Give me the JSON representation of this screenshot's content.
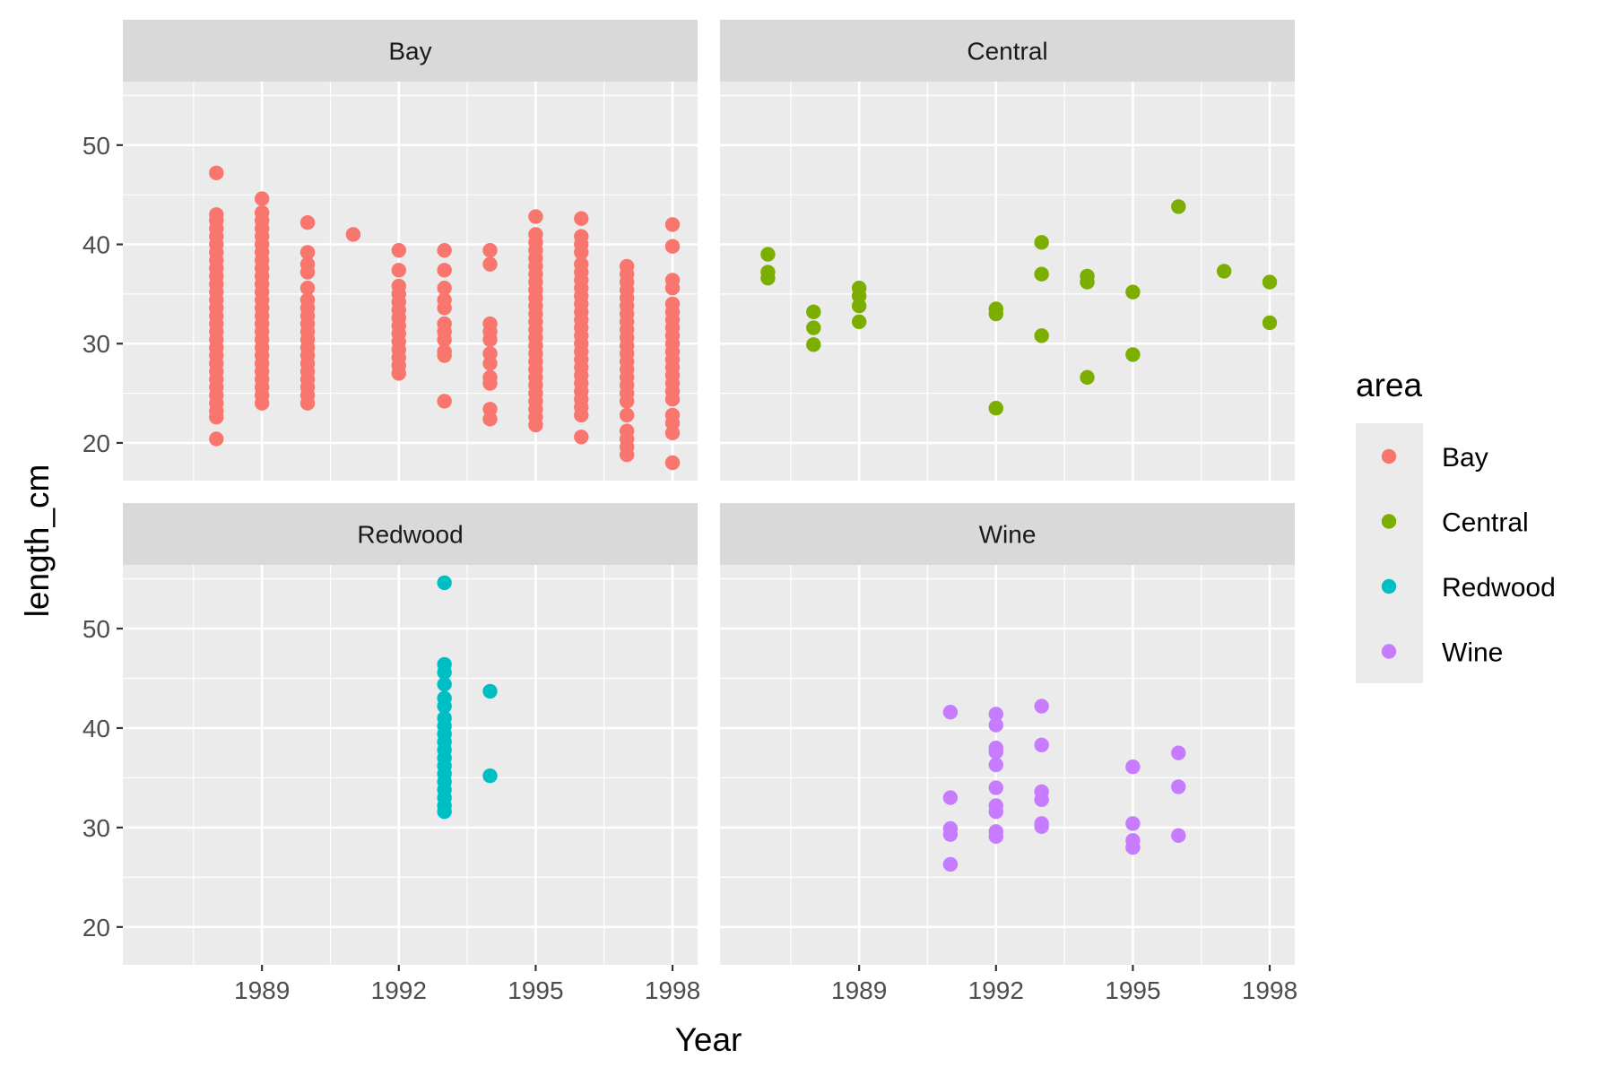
{
  "chart_data": {
    "type": "scatter",
    "xlabel": "Year",
    "ylabel": "length_cm",
    "x_ticks": [
      1989,
      1992,
      1995,
      1998
    ],
    "x_tick_labels": [
      "1989",
      "1992",
      "1995",
      "1998"
    ],
    "xlim": [
      1985.95,
      1998.55
    ],
    "y_ticks": [
      20,
      30,
      40,
      50
    ],
    "y_tick_labels": [
      "20",
      "30",
      "40",
      "50"
    ],
    "ylim": [
      16.2,
      56.4
    ],
    "grid": true,
    "legend": {
      "title": "area",
      "position": "right",
      "entries": [
        "Bay",
        "Central",
        "Redwood",
        "Wine"
      ]
    },
    "series": [
      {
        "name": "Bay",
        "panel": "Bay",
        "color": "#F8766D",
        "points": [
          [
            1988,
            47.2
          ],
          [
            1988,
            43.0
          ],
          [
            1988,
            42.4
          ],
          [
            1988,
            41.6
          ],
          [
            1988,
            40.8
          ],
          [
            1988,
            40.0
          ],
          [
            1988,
            39.2
          ],
          [
            1988,
            38.4
          ],
          [
            1988,
            37.6
          ],
          [
            1988,
            36.8
          ],
          [
            1988,
            36.0
          ],
          [
            1988,
            35.2
          ],
          [
            1988,
            34.4
          ],
          [
            1988,
            33.6
          ],
          [
            1988,
            32.8
          ],
          [
            1988,
            32.0
          ],
          [
            1988,
            31.2
          ],
          [
            1988,
            30.4
          ],
          [
            1988,
            29.6
          ],
          [
            1988,
            28.8
          ],
          [
            1988,
            28.0
          ],
          [
            1988,
            27.2
          ],
          [
            1988,
            26.4
          ],
          [
            1988,
            25.6
          ],
          [
            1988,
            24.8
          ],
          [
            1988,
            24.0
          ],
          [
            1988,
            23.2
          ],
          [
            1988,
            22.6
          ],
          [
            1988,
            20.4
          ],
          [
            1989,
            44.6
          ],
          [
            1989,
            43.2
          ],
          [
            1989,
            42.4
          ],
          [
            1989,
            41.6
          ],
          [
            1989,
            40.8
          ],
          [
            1989,
            40.0
          ],
          [
            1989,
            39.2
          ],
          [
            1989,
            38.4
          ],
          [
            1989,
            37.6
          ],
          [
            1989,
            36.8
          ],
          [
            1989,
            36.0
          ],
          [
            1989,
            35.2
          ],
          [
            1989,
            34.4
          ],
          [
            1989,
            33.6
          ],
          [
            1989,
            32.8
          ],
          [
            1989,
            32.0
          ],
          [
            1989,
            31.2
          ],
          [
            1989,
            30.4
          ],
          [
            1989,
            29.6
          ],
          [
            1989,
            28.8
          ],
          [
            1989,
            28.0
          ],
          [
            1989,
            27.2
          ],
          [
            1989,
            26.4
          ],
          [
            1989,
            25.6
          ],
          [
            1989,
            24.8
          ],
          [
            1989,
            24.0
          ],
          [
            1990,
            42.2
          ],
          [
            1990,
            39.2
          ],
          [
            1990,
            38.0
          ],
          [
            1990,
            37.2
          ],
          [
            1990,
            35.6
          ],
          [
            1990,
            34.4
          ],
          [
            1990,
            33.6
          ],
          [
            1990,
            32.8
          ],
          [
            1990,
            32.0
          ],
          [
            1990,
            31.2
          ],
          [
            1990,
            30.4
          ],
          [
            1990,
            29.6
          ],
          [
            1990,
            28.8
          ],
          [
            1990,
            28.0
          ],
          [
            1990,
            27.2
          ],
          [
            1990,
            26.4
          ],
          [
            1990,
            25.6
          ],
          [
            1990,
            24.8
          ],
          [
            1990,
            24.0
          ],
          [
            1991,
            41.0
          ],
          [
            1992,
            39.4
          ],
          [
            1992,
            37.4
          ],
          [
            1992,
            35.8
          ],
          [
            1992,
            35.0
          ],
          [
            1992,
            34.2
          ],
          [
            1992,
            33.4
          ],
          [
            1992,
            32.6
          ],
          [
            1992,
            31.8
          ],
          [
            1992,
            31.0
          ],
          [
            1992,
            30.2
          ],
          [
            1992,
            29.4
          ],
          [
            1992,
            28.6
          ],
          [
            1992,
            27.8
          ],
          [
            1992,
            27.0
          ],
          [
            1993,
            39.4
          ],
          [
            1993,
            37.4
          ],
          [
            1993,
            35.6
          ],
          [
            1993,
            34.4
          ],
          [
            1993,
            33.6
          ],
          [
            1993,
            32.0
          ],
          [
            1993,
            31.2
          ],
          [
            1993,
            30.4
          ],
          [
            1993,
            29.2
          ],
          [
            1993,
            28.8
          ],
          [
            1993,
            24.2
          ],
          [
            1994,
            39.4
          ],
          [
            1994,
            38.0
          ],
          [
            1994,
            32.0
          ],
          [
            1994,
            31.2
          ],
          [
            1994,
            30.4
          ],
          [
            1994,
            29.0
          ],
          [
            1994,
            28.0
          ],
          [
            1994,
            26.6
          ],
          [
            1994,
            26.0
          ],
          [
            1994,
            23.4
          ],
          [
            1994,
            22.4
          ],
          [
            1995,
            42.8
          ],
          [
            1995,
            41.0
          ],
          [
            1995,
            40.2
          ],
          [
            1995,
            39.4
          ],
          [
            1995,
            38.6
          ],
          [
            1995,
            37.8
          ],
          [
            1995,
            37.0
          ],
          [
            1995,
            36.2
          ],
          [
            1995,
            35.4
          ],
          [
            1995,
            34.6
          ],
          [
            1995,
            33.8
          ],
          [
            1995,
            33.0
          ],
          [
            1995,
            32.2
          ],
          [
            1995,
            31.4
          ],
          [
            1995,
            30.6
          ],
          [
            1995,
            29.8
          ],
          [
            1995,
            29.0
          ],
          [
            1995,
            28.2
          ],
          [
            1995,
            27.4
          ],
          [
            1995,
            26.6
          ],
          [
            1995,
            25.8
          ],
          [
            1995,
            25.0
          ],
          [
            1995,
            24.2
          ],
          [
            1995,
            23.4
          ],
          [
            1995,
            22.6
          ],
          [
            1995,
            21.8
          ],
          [
            1996,
            42.6
          ],
          [
            1996,
            40.8
          ],
          [
            1996,
            40.0
          ],
          [
            1996,
            39.2
          ],
          [
            1996,
            38.0
          ],
          [
            1996,
            37.2
          ],
          [
            1996,
            36.4
          ],
          [
            1996,
            35.6
          ],
          [
            1996,
            34.8
          ],
          [
            1996,
            34.0
          ],
          [
            1996,
            33.2
          ],
          [
            1996,
            32.4
          ],
          [
            1996,
            31.6
          ],
          [
            1996,
            30.8
          ],
          [
            1996,
            30.0
          ],
          [
            1996,
            29.2
          ],
          [
            1996,
            28.4
          ],
          [
            1996,
            27.6
          ],
          [
            1996,
            26.8
          ],
          [
            1996,
            26.0
          ],
          [
            1996,
            25.2
          ],
          [
            1996,
            24.4
          ],
          [
            1996,
            23.6
          ],
          [
            1996,
            22.8
          ],
          [
            1996,
            20.6
          ],
          [
            1997,
            37.8
          ],
          [
            1997,
            37.0
          ],
          [
            1997,
            36.2
          ],
          [
            1997,
            35.4
          ],
          [
            1997,
            34.6
          ],
          [
            1997,
            33.8
          ],
          [
            1997,
            33.0
          ],
          [
            1997,
            32.2
          ],
          [
            1997,
            31.4
          ],
          [
            1997,
            30.6
          ],
          [
            1997,
            29.8
          ],
          [
            1997,
            29.0
          ],
          [
            1997,
            28.2
          ],
          [
            1997,
            27.4
          ],
          [
            1997,
            26.6
          ],
          [
            1997,
            25.8
          ],
          [
            1997,
            25.0
          ],
          [
            1997,
            24.2
          ],
          [
            1997,
            22.8
          ],
          [
            1997,
            21.2
          ],
          [
            1997,
            20.4
          ],
          [
            1997,
            19.6
          ],
          [
            1997,
            18.8
          ],
          [
            1998,
            42.0
          ],
          [
            1998,
            39.8
          ],
          [
            1998,
            36.4
          ],
          [
            1998,
            35.6
          ],
          [
            1998,
            34.0
          ],
          [
            1998,
            33.2
          ],
          [
            1998,
            32.4
          ],
          [
            1998,
            31.6
          ],
          [
            1998,
            30.8
          ],
          [
            1998,
            30.0
          ],
          [
            1998,
            29.2
          ],
          [
            1998,
            28.4
          ],
          [
            1998,
            27.6
          ],
          [
            1998,
            26.8
          ],
          [
            1998,
            26.0
          ],
          [
            1998,
            25.2
          ],
          [
            1998,
            24.4
          ],
          [
            1998,
            22.8
          ],
          [
            1998,
            22.0
          ],
          [
            1998,
            21.0
          ],
          [
            1998,
            18.0
          ]
        ]
      },
      {
        "name": "Central",
        "panel": "Central",
        "color": "#7CAE00",
        "points": [
          [
            1987,
            39.0
          ],
          [
            1987,
            37.2
          ],
          [
            1987,
            36.6
          ],
          [
            1988,
            33.2
          ],
          [
            1988,
            31.6
          ],
          [
            1988,
            29.9
          ],
          [
            1989,
            35.6
          ],
          [
            1989,
            34.8
          ],
          [
            1989,
            33.8
          ],
          [
            1989,
            32.2
          ],
          [
            1992,
            33.5
          ],
          [
            1992,
            33.0
          ],
          [
            1992,
            23.5
          ],
          [
            1993,
            40.2
          ],
          [
            1993,
            37.0
          ],
          [
            1993,
            30.8
          ],
          [
            1994,
            36.8
          ],
          [
            1994,
            36.2
          ],
          [
            1994,
            26.6
          ],
          [
            1995,
            35.2
          ],
          [
            1995,
            28.9
          ],
          [
            1996,
            43.8
          ],
          [
            1997,
            37.3
          ],
          [
            1998,
            36.2
          ],
          [
            1998,
            32.1
          ]
        ]
      },
      {
        "name": "Redwood",
        "panel": "Redwood",
        "color": "#00BFC4",
        "points": [
          [
            1993,
            54.6
          ],
          [
            1993,
            46.4
          ],
          [
            1993,
            45.6
          ],
          [
            1993,
            44.4
          ],
          [
            1993,
            43.0
          ],
          [
            1993,
            42.2
          ],
          [
            1993,
            41.0
          ],
          [
            1993,
            40.2
          ],
          [
            1993,
            39.4
          ],
          [
            1993,
            38.6
          ],
          [
            1993,
            37.8
          ],
          [
            1993,
            37.0
          ],
          [
            1993,
            36.2
          ],
          [
            1993,
            35.4
          ],
          [
            1993,
            34.6
          ],
          [
            1993,
            33.8
          ],
          [
            1993,
            33.0
          ],
          [
            1993,
            32.2
          ],
          [
            1993,
            31.6
          ],
          [
            1994,
            43.7
          ],
          [
            1994,
            35.2
          ]
        ]
      },
      {
        "name": "Wine",
        "panel": "Wine",
        "color": "#C77CFF",
        "points": [
          [
            1991,
            41.6
          ],
          [
            1991,
            33.0
          ],
          [
            1991,
            29.9
          ],
          [
            1991,
            29.3
          ],
          [
            1991,
            26.3
          ],
          [
            1992,
            41.4
          ],
          [
            1992,
            40.3
          ],
          [
            1992,
            38.0
          ],
          [
            1992,
            37.6
          ],
          [
            1992,
            36.3
          ],
          [
            1992,
            34.0
          ],
          [
            1992,
            32.2
          ],
          [
            1992,
            31.6
          ],
          [
            1992,
            29.6
          ],
          [
            1992,
            29.1
          ],
          [
            1993,
            42.2
          ],
          [
            1993,
            38.3
          ],
          [
            1993,
            33.6
          ],
          [
            1993,
            32.8
          ],
          [
            1993,
            30.4
          ],
          [
            1993,
            30.1
          ],
          [
            1995,
            36.1
          ],
          [
            1995,
            30.4
          ],
          [
            1995,
            28.7
          ],
          [
            1995,
            28.0
          ],
          [
            1996,
            37.5
          ],
          [
            1996,
            34.1
          ],
          [
            1996,
            29.2
          ]
        ]
      }
    ]
  }
}
